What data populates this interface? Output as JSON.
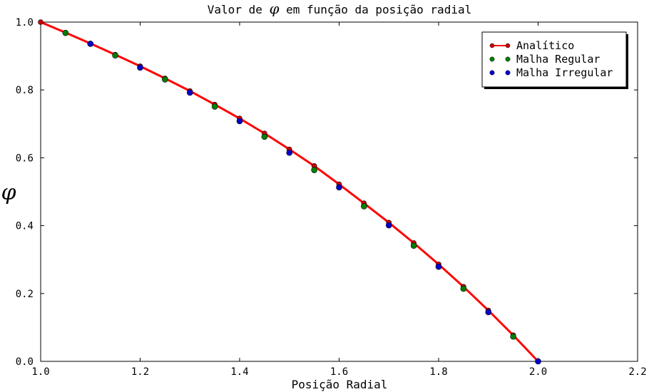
{
  "chart_data": {
    "type": "line",
    "title_prefix": "Valor de ",
    "title_symbol": "φ",
    "title_suffix": " em função da posição radial",
    "xlabel": "Posição Radial",
    "ylabel": "φ",
    "xlim": [
      1.0,
      2.2
    ],
    "ylim": [
      0.0,
      1.0
    ],
    "xticks": [
      "1.0",
      "1.2",
      "1.4",
      "1.6",
      "1.8",
      "2.0",
      "2.2"
    ],
    "yticks": [
      "0.0",
      "0.2",
      "0.4",
      "0.6",
      "0.8",
      "1.0"
    ],
    "grid": false,
    "legend_position": "top-right",
    "series": [
      {
        "name": "Analítico",
        "style": "line-marker",
        "color": "#ff0000",
        "marker_color": "#cc0000",
        "x": [
          1.0,
          1.05,
          1.1,
          1.15,
          1.2,
          1.25,
          1.3,
          1.35,
          1.4,
          1.45,
          1.5,
          1.55,
          1.6,
          1.65,
          1.7,
          1.75,
          1.8,
          1.85,
          1.9,
          1.95,
          2.0
        ],
        "y": [
          1.0,
          0.969,
          0.937,
          0.904,
          0.87,
          0.834,
          0.797,
          0.757,
          0.716,
          0.672,
          0.625,
          0.576,
          0.522,
          0.466,
          0.409,
          0.349,
          0.286,
          0.22,
          0.15,
          0.077,
          0.0
        ]
      },
      {
        "name": "Malha Regular",
        "style": "marker",
        "color": "#008000",
        "x": [
          1.05,
          1.15,
          1.25,
          1.35,
          1.45,
          1.55,
          1.65,
          1.75,
          1.85,
          1.95
        ],
        "y": [
          0.968,
          0.902,
          0.831,
          0.751,
          0.662,
          0.564,
          0.457,
          0.341,
          0.214,
          0.073
        ]
      },
      {
        "name": "Malha Irregular",
        "style": "marker",
        "color": "#0000cc",
        "x": [
          1.1,
          1.2,
          1.3,
          1.4,
          1.5,
          1.6,
          1.7,
          1.8,
          1.9,
          2.0
        ],
        "y": [
          0.936,
          0.866,
          0.792,
          0.708,
          0.615,
          0.513,
          0.401,
          0.279,
          0.145,
          0.0
        ]
      }
    ]
  }
}
